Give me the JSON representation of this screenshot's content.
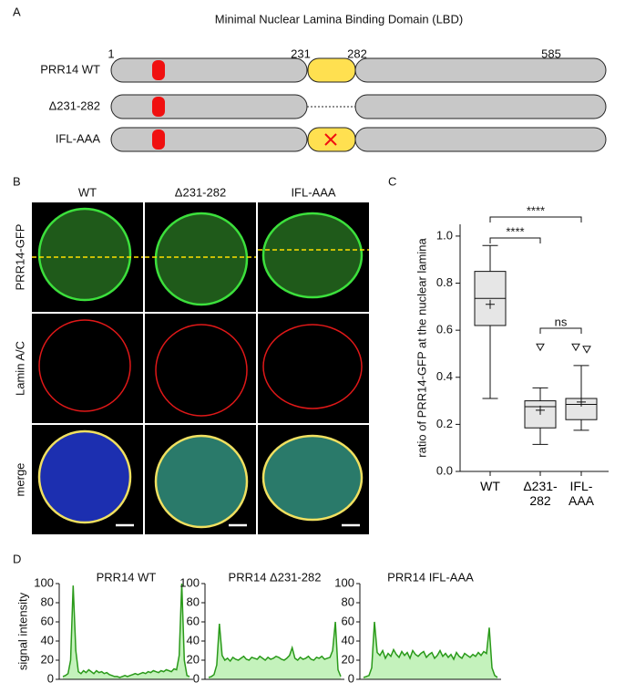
{
  "panel_labels": [
    "A",
    "B",
    "C",
    "D"
  ],
  "diagram": {
    "title": "Minimal Nuclear Lamina Binding Domain (LBD)",
    "positions": [
      "1",
      "231",
      "282",
      "585"
    ],
    "constructs": [
      "PRR14 WT",
      "Δ231-282",
      "IFL-AAA"
    ]
  },
  "microscopy": {
    "columns": [
      "WT",
      "Δ231-282",
      "IFL-AAA"
    ],
    "rows": [
      "PRR14-GFP",
      "Lamin A/C",
      "merge"
    ]
  },
  "chart_data": [
    {
      "type": "box",
      "ylabel": "ratio of PRR14-GFP at the nuclear lamina",
      "categories": [
        "WT",
        "Δ231-282",
        "IFL-AAA"
      ],
      "boxes": [
        {
          "min": 0.31,
          "q1": 0.62,
          "median": 0.735,
          "q3": 0.85,
          "max": 0.96,
          "mean": 0.71,
          "outliers": []
        },
        {
          "min": 0.115,
          "q1": 0.185,
          "median": 0.275,
          "q3": 0.3,
          "max": 0.355,
          "mean": 0.26,
          "outliers": [
            0.53
          ]
        },
        {
          "min": 0.175,
          "q1": 0.22,
          "median": 0.285,
          "q3": 0.31,
          "max": 0.45,
          "mean": 0.295,
          "outliers": [
            0.53,
            0.52
          ]
        }
      ],
      "annotations": [
        "****",
        "****",
        "ns"
      ],
      "color": "#e6e6e6",
      "ylim": [
        0,
        1.05
      ],
      "yticks": [
        {
          "value": 0,
          "label": "0.0"
        },
        {
          "value": 0.2,
          "label": "0.2"
        },
        {
          "value": 0.4,
          "label": "0.4"
        },
        {
          "value": 0.6,
          "label": "0.6"
        },
        {
          "value": 0.8,
          "label": "0.8"
        },
        {
          "value": 1,
          "label": "1.0"
        }
      ]
    },
    {
      "type": "line",
      "title": "PRR14 WT",
      "ylabel": "signal intensity",
      "color": "#2a9a1a",
      "ylim": [
        0,
        100
      ],
      "yticks": [
        0,
        20,
        40,
        60,
        80,
        100
      ],
      "values": [
        3,
        4,
        6,
        20,
        98,
        30,
        8,
        6,
        9,
        7,
        10,
        8,
        6,
        9,
        7,
        8,
        6,
        7,
        5,
        4,
        3,
        3,
        2,
        3,
        4,
        3,
        4,
        5,
        6,
        5,
        6,
        7,
        6,
        8,
        7,
        9,
        8,
        7,
        9,
        8,
        10,
        9,
        8,
        11,
        10,
        25,
        100,
        20,
        4,
        3
      ]
    },
    {
      "type": "line",
      "title": "PRR14 Δ231-282",
      "color": "#2a9a1a",
      "ylim": [
        0,
        100
      ],
      "yticks": [
        0,
        20,
        40,
        60,
        80,
        100
      ],
      "values": [
        2,
        3,
        5,
        15,
        58,
        25,
        20,
        22,
        19,
        23,
        21,
        20,
        22,
        24,
        21,
        20,
        23,
        22,
        21,
        24,
        22,
        20,
        23,
        21,
        22,
        24,
        23,
        21,
        20,
        22,
        25,
        33,
        22,
        20,
        23,
        21,
        22,
        24,
        21,
        20,
        23,
        22,
        24,
        21,
        22,
        23,
        30,
        60,
        10,
        3
      ]
    },
    {
      "type": "line",
      "title": "PRR14 IFL-AAA",
      "color": "#2a9a1a",
      "ylim": [
        0,
        100
      ],
      "yticks": [
        0,
        20,
        40,
        60,
        80,
        100
      ],
      "values": [
        2,
        3,
        4,
        12,
        60,
        28,
        25,
        30,
        22,
        27,
        24,
        31,
        26,
        23,
        29,
        25,
        28,
        22,
        30,
        26,
        24,
        27,
        29,
        23,
        26,
        28,
        22,
        25,
        30,
        24,
        27,
        23,
        26,
        21,
        28,
        24,
        22,
        27,
        25,
        23,
        26,
        24,
        28,
        25,
        29,
        27,
        54,
        12,
        4,
        2
      ]
    }
  ]
}
